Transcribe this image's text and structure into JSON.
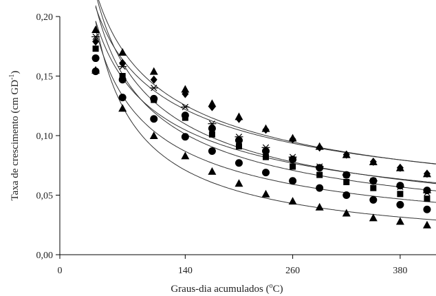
{
  "chart_data": {
    "type": "scatter",
    "xlabel_main": "Graus-dia acumulados (",
    "xlabel_sup": "o",
    "xlabel_end": "C)",
    "ylabel_main": "Taxa de crescimento (cm GD",
    "ylabel_sup": "-1",
    "ylabel_end": ")",
    "x_ticks": [
      0,
      140,
      260,
      380
    ],
    "y_ticks": [
      "0,00",
      "0,05",
      "0,10",
      "0,15",
      "0,20"
    ],
    "xlim": [
      0,
      420
    ],
    "ylim": [
      0,
      0.2
    ],
    "grid": false,
    "legend": "none",
    "x": [
      40,
      70,
      105,
      140,
      170,
      200,
      230,
      260,
      290,
      320,
      350,
      380,
      410
    ],
    "series": [
      {
        "marker": "triangle",
        "values": [
          0.189,
          0.17,
          0.154,
          0.139,
          0.127,
          0.116,
          0.106,
          0.098,
          0.091,
          0.084,
          0.078,
          0.073,
          0.068
        ]
      },
      {
        "marker": "diamond",
        "values": [
          0.179,
          0.161,
          0.147,
          0.135,
          0.124,
          0.114,
          0.105,
          0.097,
          0.09,
          0.084,
          0.078,
          0.073,
          0.068
        ]
      },
      {
        "marker": "star",
        "values": [
          0.183,
          0.158,
          0.14,
          0.124,
          0.11,
          0.099,
          0.09,
          0.082,
          0.074,
          0.067,
          0.062,
          0.057,
          0.052
        ]
      },
      {
        "marker": "square",
        "values": [
          0.173,
          0.15,
          0.13,
          0.115,
          0.101,
          0.091,
          0.082,
          0.074,
          0.067,
          0.061,
          0.056,
          0.051,
          0.047
        ]
      },
      {
        "marker": "circle",
        "values": [
          0.165,
          0.147,
          0.131,
          0.117,
          0.106,
          0.096,
          0.087,
          0.08,
          0.073,
          0.067,
          0.062,
          0.058,
          0.054
        ]
      },
      {
        "marker": "circle",
        "values": [
          0.154,
          0.132,
          0.114,
          0.099,
          0.087,
          0.077,
          0.069,
          0.062,
          0.056,
          0.05,
          0.046,
          0.042,
          0.038
        ]
      },
      {
        "marker": "triangle",
        "values": [
          0.155,
          0.123,
          0.1,
          0.083,
          0.07,
          0.06,
          0.051,
          0.045,
          0.04,
          0.035,
          0.031,
          0.028,
          0.025
        ]
      }
    ]
  }
}
